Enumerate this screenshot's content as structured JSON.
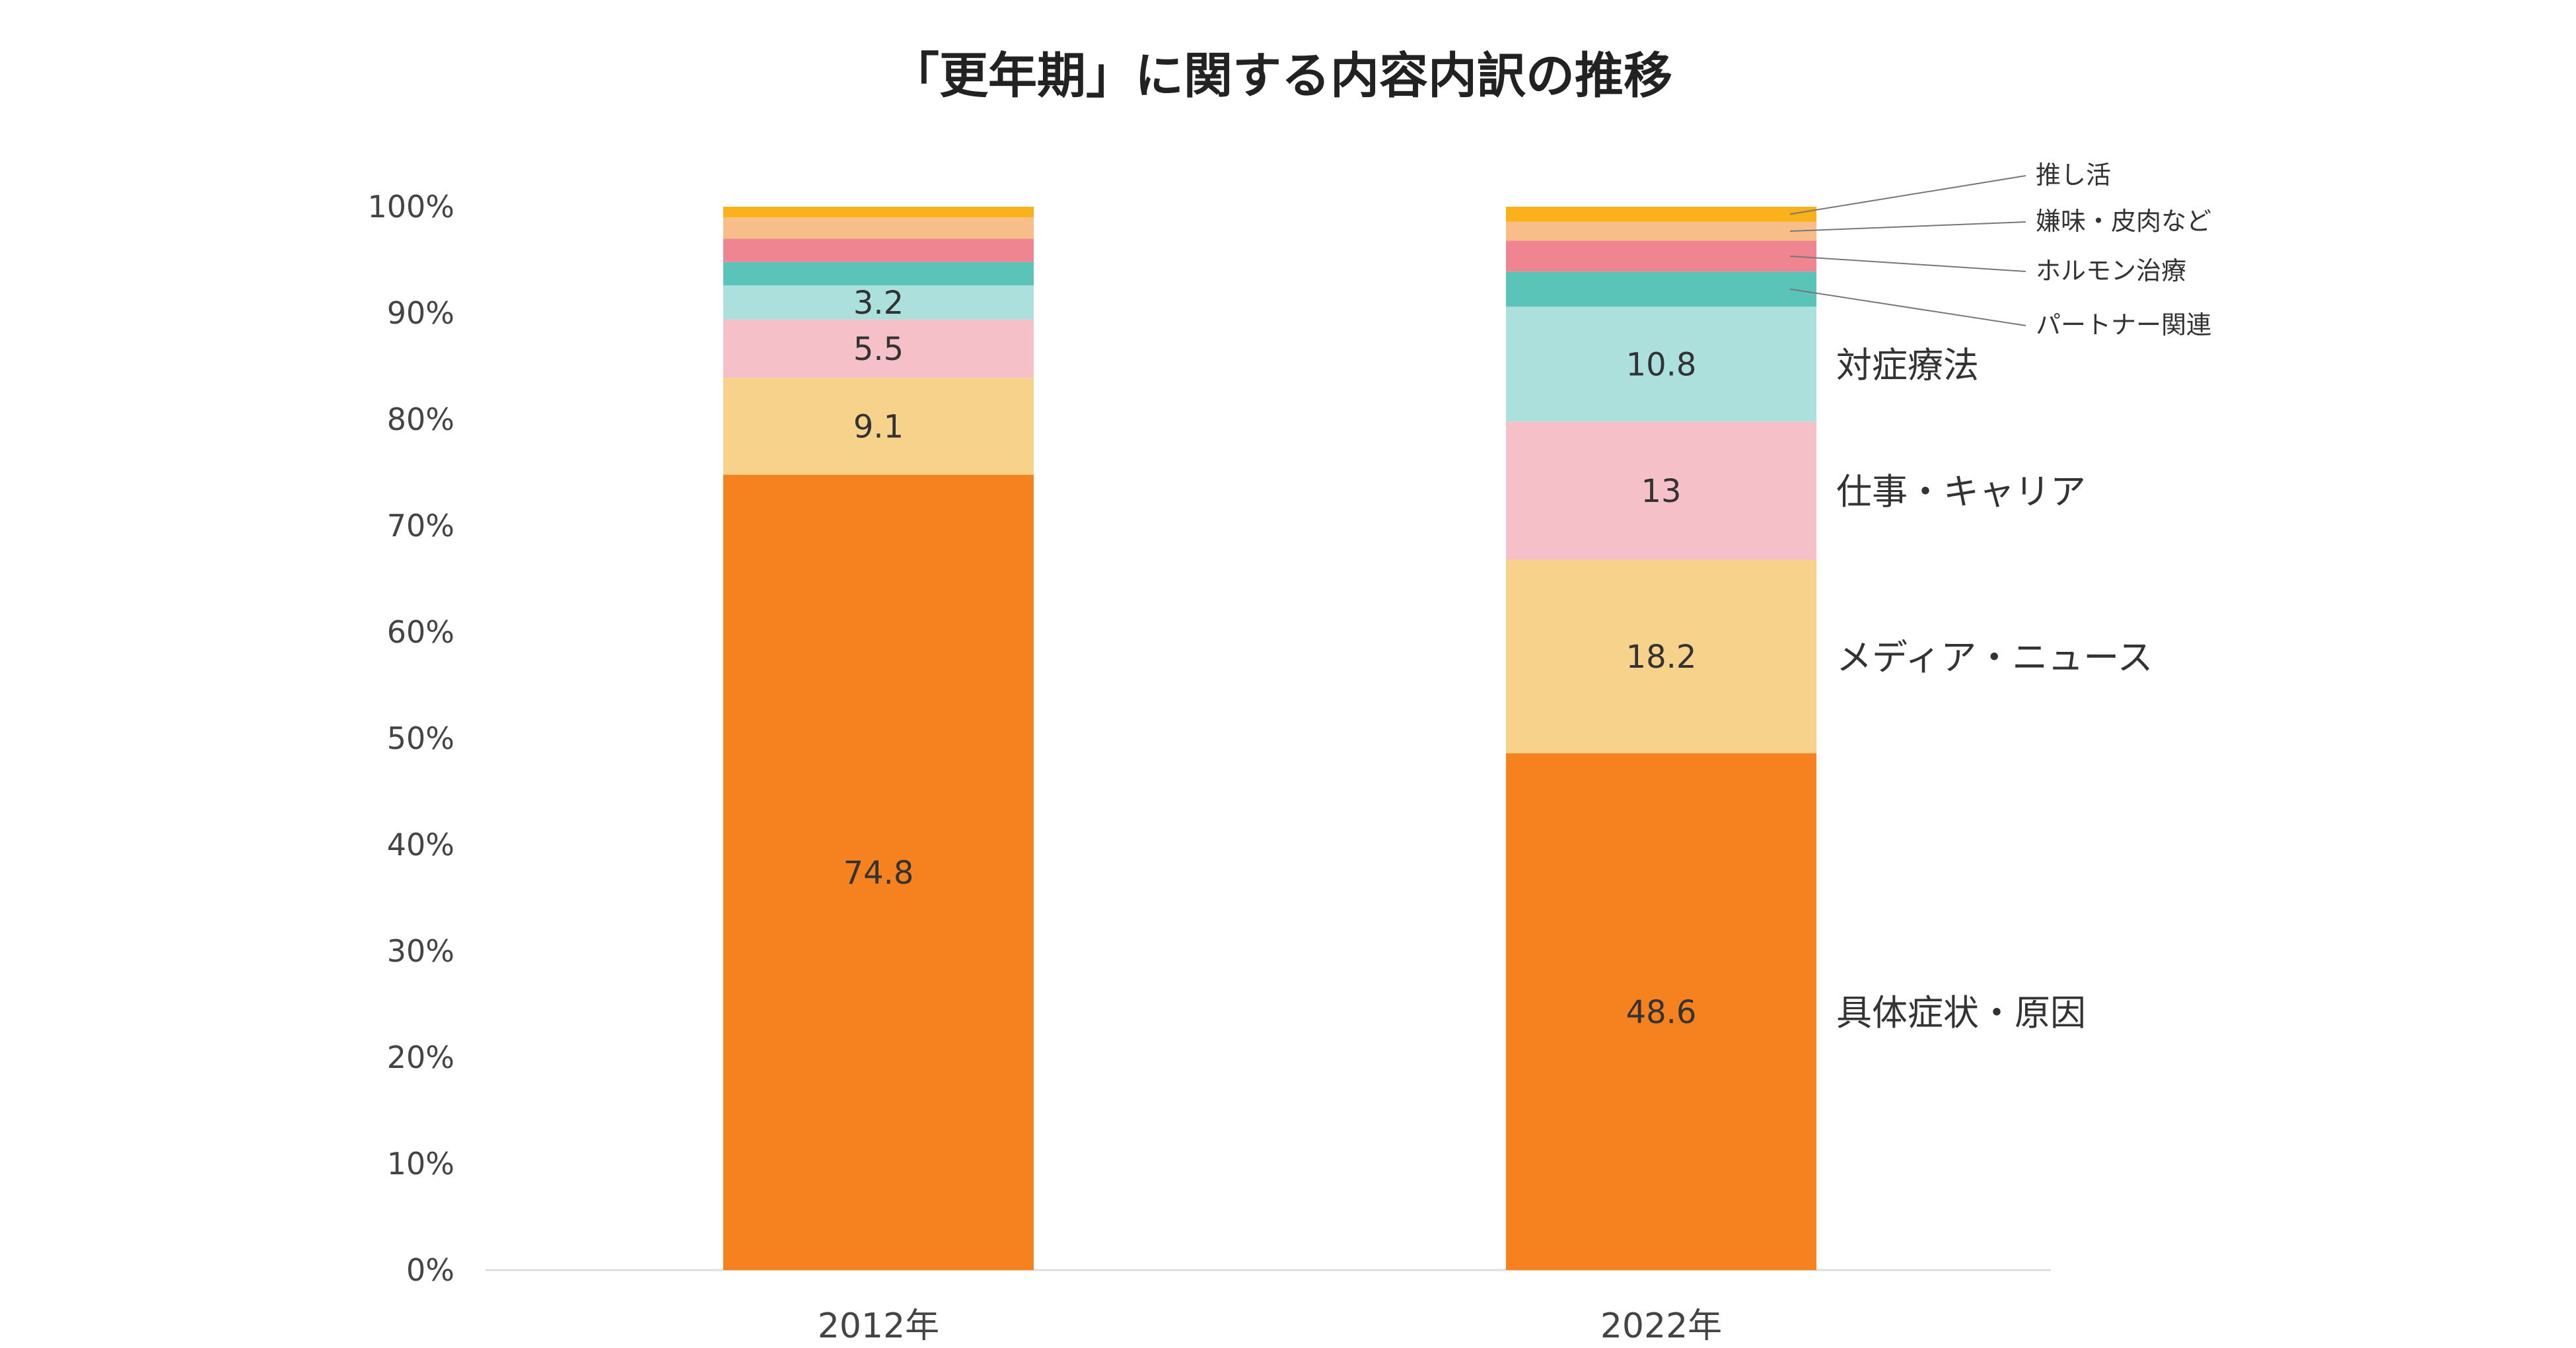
{
  "chart_data": {
    "type": "bar",
    "stacked": true,
    "title": "「更年期」に関する内容内訳の推移",
    "categories": [
      "2012年",
      "2022年"
    ],
    "ylim": [
      0,
      100
    ],
    "yticks": [
      "0%",
      "10%",
      "20%",
      "30%",
      "40%",
      "50%",
      "60%",
      "70%",
      "80%",
      "90%",
      "100%"
    ],
    "series": [
      {
        "name": "具体症状・原因",
        "color": "#F5821F",
        "values": [
          74.8,
          48.6
        ],
        "labels": [
          "74.8",
          "48.6"
        ]
      },
      {
        "name": "メディア・ニュース",
        "color": "#F7D28A",
        "values": [
          9.1,
          18.2
        ],
        "labels": [
          "9.1",
          "18.2"
        ]
      },
      {
        "name": "仕事・キャリア",
        "color": "#F5C0C7",
        "values": [
          5.5,
          13
        ],
        "labels": [
          "5.5",
          "13"
        ]
      },
      {
        "name": "対症療法",
        "color": "#ACE0DC",
        "values": [
          3.2,
          10.8
        ],
        "labels": [
          "3.2",
          "10.8"
        ]
      },
      {
        "name": "パートナー関連",
        "color": "#5BC4B8",
        "values": [
          2.2,
          3.3
        ],
        "labels": [
          "",
          ""
        ]
      },
      {
        "name": "ホルモン治療",
        "color": "#F08592",
        "values": [
          2.2,
          2.9
        ],
        "labels": [
          "",
          ""
        ]
      },
      {
        "name": "嫌味・皮肉など",
        "color": "#F8BE8A",
        "values": [
          2.0,
          1.8
        ],
        "labels": [
          "",
          ""
        ]
      },
      {
        "name": "推し活",
        "color": "#FBB119",
        "values": [
          1.0,
          1.4
        ],
        "labels": [
          "",
          ""
        ]
      }
    ]
  }
}
